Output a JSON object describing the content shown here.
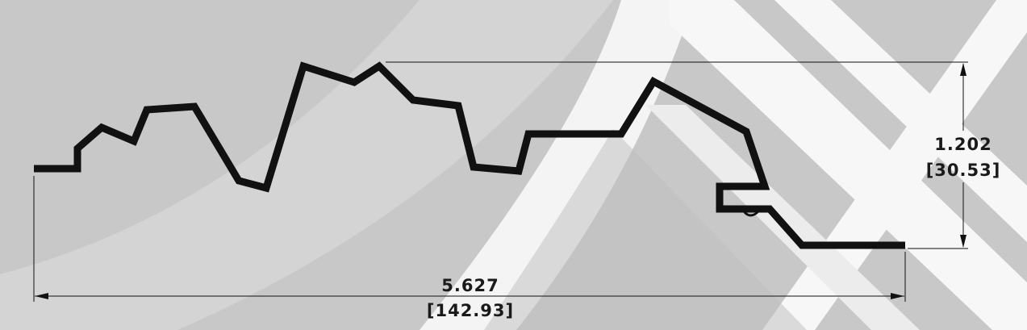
{
  "dimensions": {
    "height": {
      "imperial": "1.202",
      "metric": "[30.53]"
    },
    "width": {
      "imperial": "5.627",
      "metric": "[142.93]"
    }
  },
  "colors": {
    "background": "#c8c8c8",
    "watermark_light": "#dedede",
    "watermark_white": "#ffffff",
    "profile": "#111111"
  },
  "icons": {
    "watermark": "diagonal-stripes-logo-watermark"
  }
}
